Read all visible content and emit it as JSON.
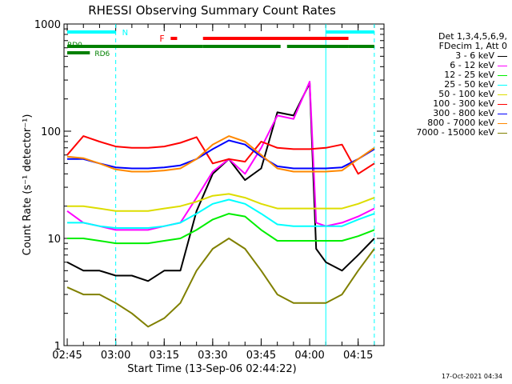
{
  "chart_data": {
    "type": "line",
    "title": "RHESSI Observing Summary Count Rates",
    "xlabel": "Start Time (13-Sep-06 02:44:22)",
    "ylabel": "Count Rate (s⁻¹ detector⁻¹)",
    "y_scale": "log",
    "ylim": [
      1,
      1000
    ],
    "y_ticks": [
      "1",
      "10",
      "100",
      "1000"
    ],
    "xlim": [
      "02:44",
      "04:23"
    ],
    "x_ticks": [
      "02:45",
      "03:00",
      "03:15",
      "03:30",
      "03:45",
      "04:00",
      "04:15"
    ],
    "grid": false,
    "legend_position": "right",
    "legend_header": [
      "Det 1,3,4,5,6,9,",
      "FDecim 1, Att 0"
    ],
    "series": [
      {
        "name": "3 - 6 keV",
        "color": "#000000",
        "times": [
          "02:45",
          "02:50",
          "02:55",
          "03:00",
          "03:05",
          "03:10",
          "03:15",
          "03:20",
          "03:25",
          "03:30",
          "03:35",
          "03:40",
          "03:45",
          "03:50",
          "03:55",
          "04:00",
          "04:02",
          "04:05",
          "04:10",
          "04:15",
          "04:20"
        ],
        "values": [
          6,
          5,
          5,
          4.5,
          4.5,
          4,
          5,
          5,
          18,
          40,
          55,
          35,
          45,
          150,
          140,
          280,
          8,
          6,
          5,
          7,
          10
        ]
      },
      {
        "name": "6 - 12 keV",
        "color": "#ff00ff",
        "times": [
          "02:45",
          "02:50",
          "02:55",
          "03:00",
          "03:05",
          "03:10",
          "03:15",
          "03:20",
          "03:25",
          "03:30",
          "03:35",
          "03:40",
          "03:45",
          "03:50",
          "03:55",
          "04:00",
          "04:02",
          "04:05",
          "04:10",
          "04:15",
          "04:20"
        ],
        "values": [
          18,
          14,
          13,
          12,
          12,
          12,
          13,
          14,
          24,
          42,
          55,
          40,
          70,
          140,
          130,
          290,
          14,
          13,
          14,
          16,
          19
        ]
      },
      {
        "name": "12 - 25 keV",
        "color": "#00ee00",
        "times": [
          "02:45",
          "02:50",
          "02:55",
          "03:00",
          "03:05",
          "03:10",
          "03:15",
          "03:20",
          "03:25",
          "03:30",
          "03:35",
          "03:40",
          "03:45",
          "03:50",
          "03:55",
          "04:00",
          "04:05",
          "04:10",
          "04:15",
          "04:20"
        ],
        "values": [
          10,
          10,
          9.5,
          9,
          9,
          9,
          9.5,
          10,
          12,
          15,
          17,
          16,
          12,
          9.5,
          9.5,
          9.5,
          9.5,
          9.5,
          10.5,
          12
        ]
      },
      {
        "name": "25 - 50 keV",
        "color": "#00ffff",
        "times": [
          "02:45",
          "02:50",
          "02:55",
          "03:00",
          "03:05",
          "03:10",
          "03:15",
          "03:20",
          "03:25",
          "03:30",
          "03:35",
          "03:40",
          "03:45",
          "03:50",
          "03:55",
          "04:00",
          "04:05",
          "04:10",
          "04:15",
          "04:20"
        ],
        "values": [
          14,
          14,
          13,
          12.5,
          12.5,
          12.5,
          13,
          14,
          17,
          21,
          23,
          21,
          17,
          13.5,
          13,
          13,
          13,
          13,
          15,
          17
        ]
      },
      {
        "name": "50 - 100 keV",
        "color": "#dddd00",
        "times": [
          "02:45",
          "02:50",
          "02:55",
          "03:00",
          "03:05",
          "03:10",
          "03:15",
          "03:20",
          "03:25",
          "03:30",
          "03:35",
          "03:40",
          "03:45",
          "03:50",
          "03:55",
          "04:00",
          "04:05",
          "04:10",
          "04:15",
          "04:20"
        ],
        "values": [
          20,
          20,
          19,
          18,
          18,
          18,
          19,
          20,
          22,
          25,
          26,
          24,
          21,
          19,
          19,
          19,
          19,
          19,
          21,
          24
        ]
      },
      {
        "name": "100 - 300 keV",
        "color": "#ff0000",
        "times": [
          "02:45",
          "02:50",
          "02:55",
          "03:00",
          "03:05",
          "03:10",
          "03:15",
          "03:20",
          "03:25",
          "03:30",
          "03:35",
          "03:40",
          "03:45",
          "03:50",
          "03:55",
          "04:00",
          "04:05",
          "04:10",
          "04:15",
          "04:20"
        ],
        "values": [
          60,
          90,
          80,
          72,
          70,
          70,
          72,
          78,
          88,
          50,
          55,
          52,
          80,
          70,
          68,
          68,
          70,
          75,
          40,
          50
        ]
      },
      {
        "name": "300 - 800 keV",
        "color": "#0000ff",
        "times": [
          "02:45",
          "02:50",
          "02:55",
          "03:00",
          "03:05",
          "03:10",
          "03:15",
          "03:20",
          "03:25",
          "03:30",
          "03:35",
          "03:40",
          "03:45",
          "03:50",
          "03:55",
          "04:00",
          "04:05",
          "04:10",
          "04:15",
          "04:20"
        ],
        "values": [
          55,
          55,
          50,
          46,
          45,
          45,
          46,
          48,
          55,
          68,
          82,
          75,
          58,
          47,
          45,
          45,
          45,
          46,
          55,
          68
        ]
      },
      {
        "name": "800 - 7000 keV",
        "color": "#ff8800",
        "times": [
          "02:45",
          "02:50",
          "02:55",
          "03:00",
          "03:05",
          "03:10",
          "03:15",
          "03:20",
          "03:25",
          "03:30",
          "03:35",
          "03:40",
          "03:45",
          "03:50",
          "03:55",
          "04:00",
          "04:05",
          "04:10",
          "04:15",
          "04:20"
        ],
        "values": [
          58,
          56,
          50,
          44,
          42,
          42,
          43,
          45,
          55,
          75,
          90,
          80,
          60,
          45,
          42,
          42,
          42,
          43,
          55,
          70
        ]
      },
      {
        "name": "7000 - 15000 keV",
        "color": "#808000",
        "times": [
          "02:45",
          "02:50",
          "02:55",
          "03:00",
          "03:05",
          "03:10",
          "03:15",
          "03:20",
          "03:25",
          "03:30",
          "03:35",
          "03:40",
          "03:45",
          "03:50",
          "03:55",
          "04:00",
          "04:05",
          "04:10",
          "04:15",
          "04:20"
        ],
        "values": [
          3.5,
          3,
          3,
          2.5,
          2,
          1.5,
          1.8,
          2.5,
          5,
          8,
          10,
          8,
          5,
          3,
          2.5,
          2.5,
          2.5,
          3,
          5,
          8
        ]
      }
    ],
    "status_bars": [
      {
        "label": "N",
        "color": "#00ffff",
        "segments": [
          [
            "02:45",
            "03:00"
          ],
          [
            "04:05",
            "04:20"
          ]
        ]
      },
      {
        "label": "F",
        "color": "#ff0000",
        "segments": [
          [
            "03:17",
            "03:19"
          ],
          [
            "03:27",
            "04:12"
          ]
        ]
      },
      {
        "label": "",
        "color": "#008000",
        "segments": [
          [
            "02:45",
            "03:27"
          ],
          [
            "03:27",
            "03:51"
          ],
          [
            "03:53",
            "04:12"
          ],
          [
            "04:12",
            "04:20"
          ]
        ]
      },
      {
        "label": "RD0",
        "color": "#008000",
        "segments": []
      },
      {
        "label": "RD6",
        "color": "#008000",
        "segments": [
          [
            "02:45",
            "02:52"
          ]
        ]
      }
    ],
    "vertical_markers": [
      {
        "time": "03:00",
        "color": "#00ffff",
        "style": "dashed"
      },
      {
        "time": "04:05",
        "color": "#00ffff",
        "style": "solid"
      },
      {
        "time": "04:20",
        "color": "#00ffff",
        "style": "dashed"
      }
    ]
  },
  "footer": {
    "stamp": "17-Oct-2021 04:34"
  }
}
